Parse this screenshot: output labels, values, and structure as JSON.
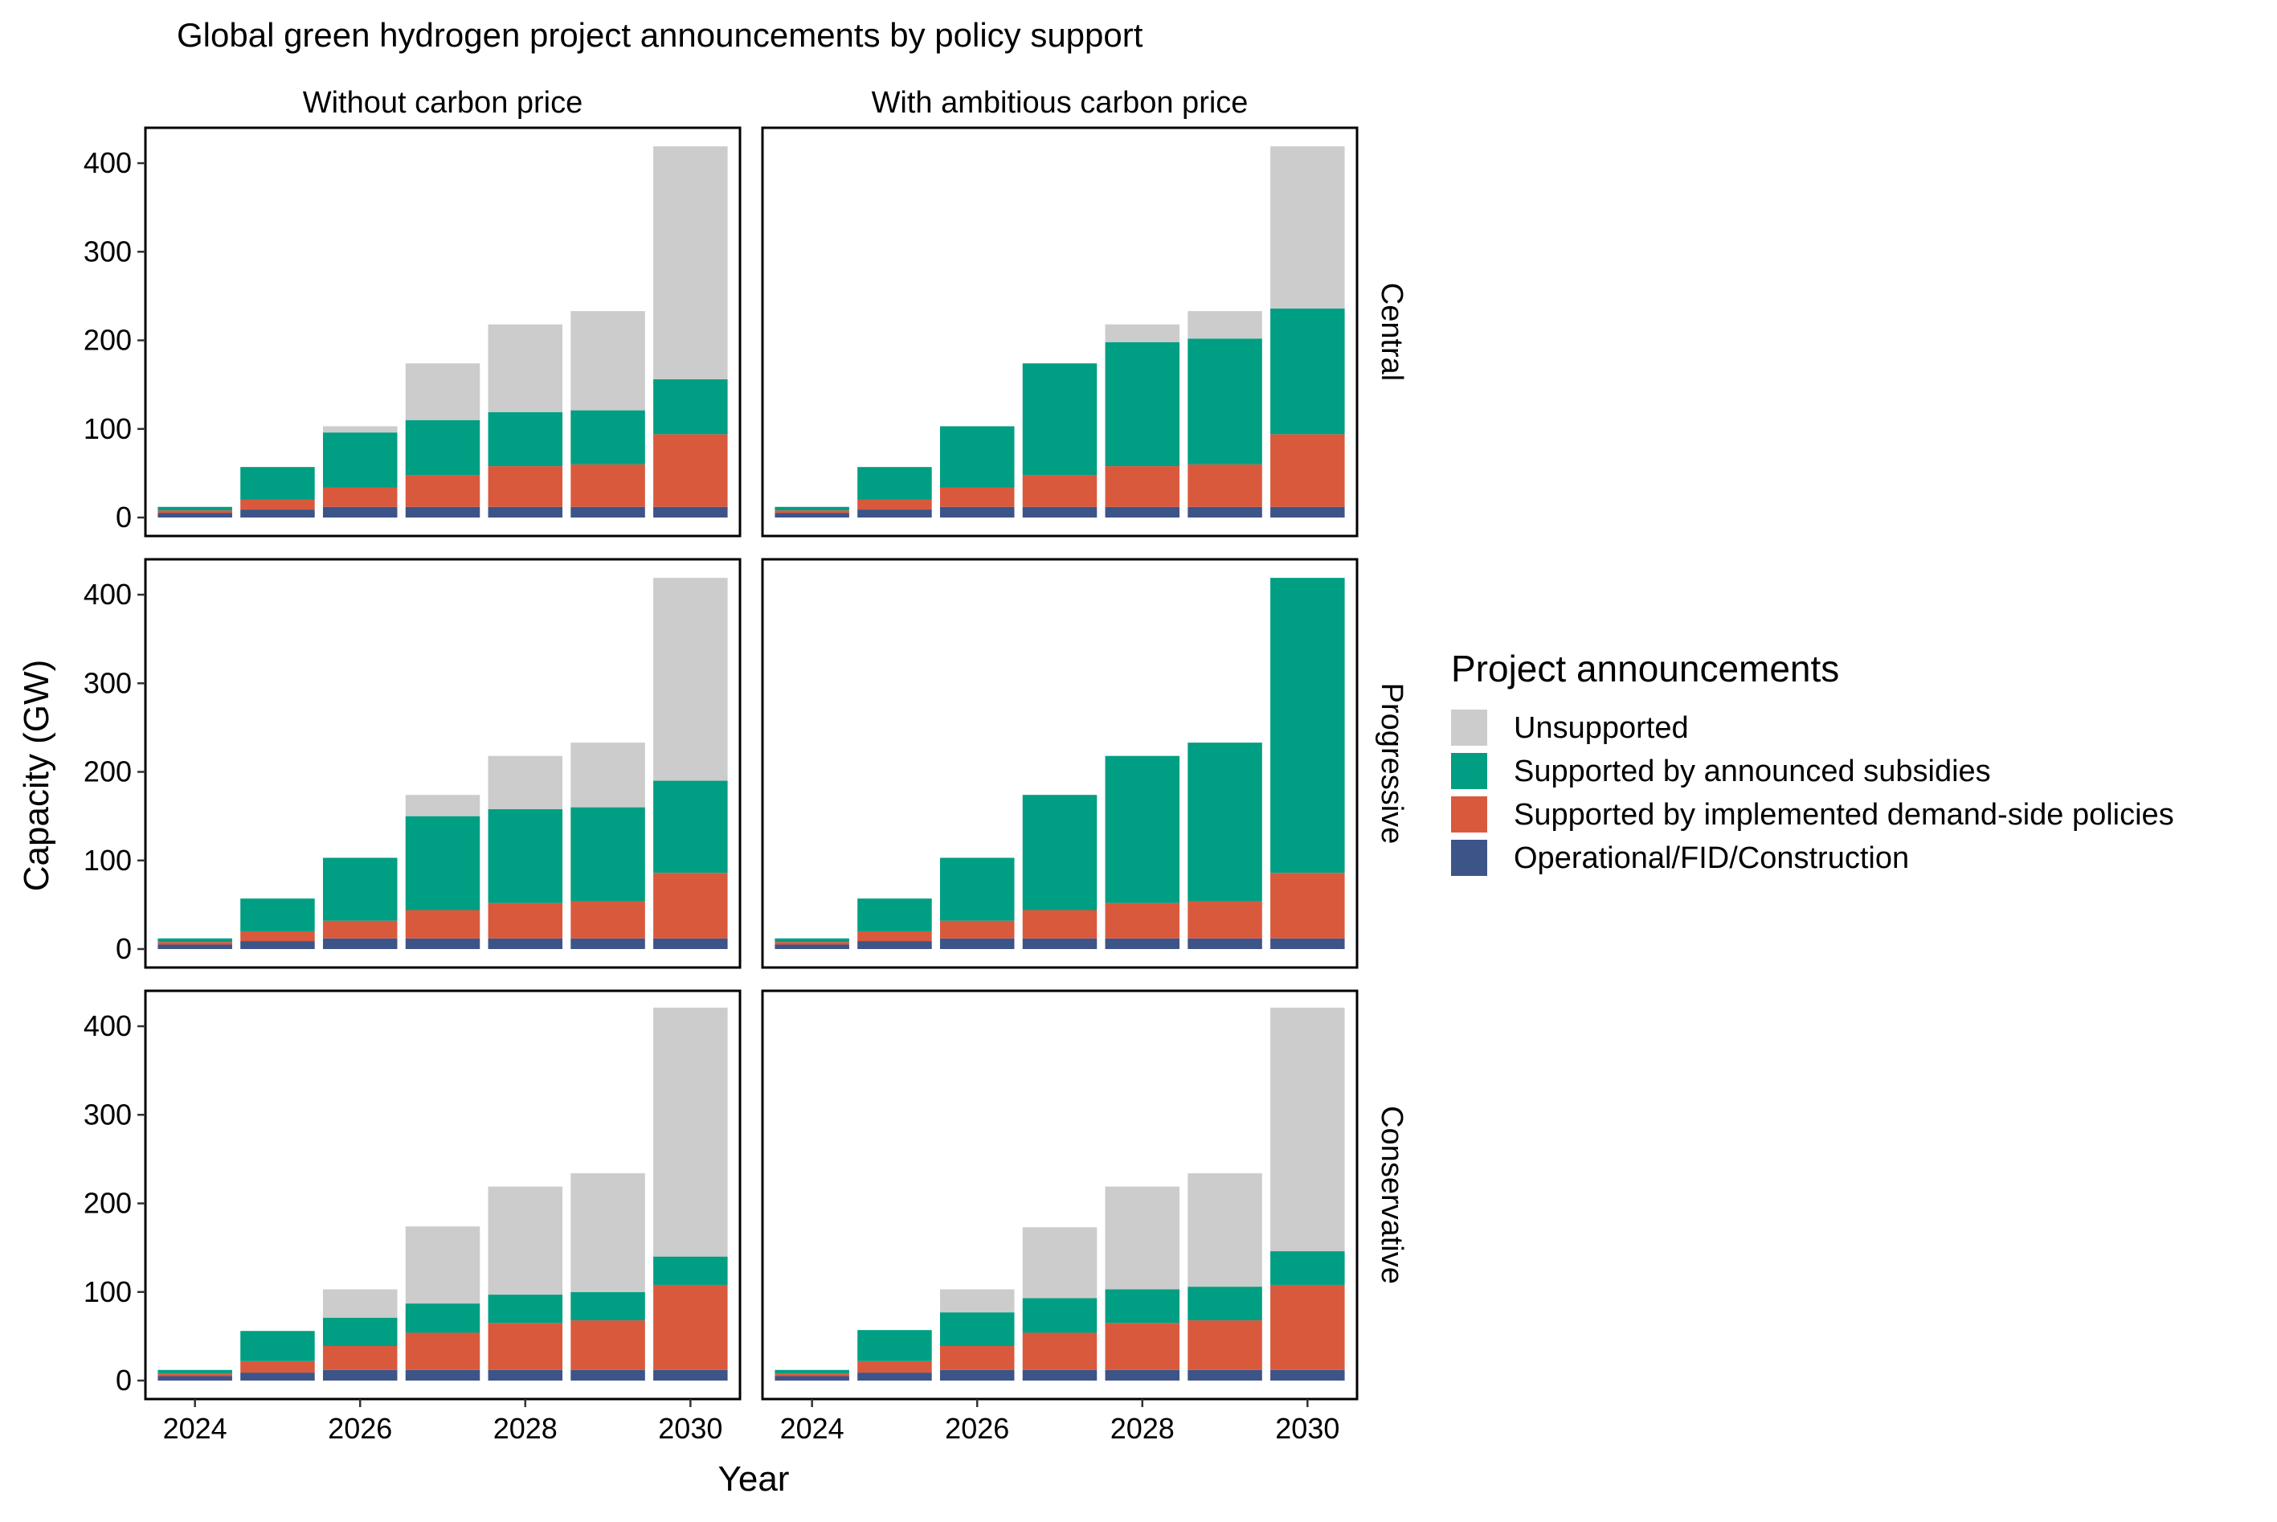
{
  "chart_data": {
    "type": "bar",
    "stacked": true,
    "faceted": true,
    "title": "Global green hydrogen project announcements by policy support",
    "xlabel": "Year",
    "ylabel": "Capacity (GW)",
    "x": [
      2024,
      2025,
      2026,
      2027,
      2028,
      2029,
      2030
    ],
    "x_tick_labels": [
      "2024",
      "2026",
      "2028",
      "2030"
    ],
    "ylim": [
      0,
      420
    ],
    "y_ticks": [
      0,
      100,
      200,
      300,
      400
    ],
    "grid": false,
    "legend_position": "right",
    "column_labels": [
      "Without carbon price",
      "With ambitious carbon price"
    ],
    "row_labels": [
      "Central",
      "Progressive",
      "Conservative"
    ],
    "legend": {
      "title": "Project announcements",
      "items": [
        {
          "key": "unsupported",
          "label": "Unsupported",
          "color": "#cccccc"
        },
        {
          "key": "subsidies",
          "label": "Supported by announced subsidies",
          "color": "#009e82"
        },
        {
          "key": "demand",
          "label": "Supported by implemented demand-side policies",
          "color": "#d9593d"
        },
        {
          "key": "operational",
          "label": "Operational/FID/Construction",
          "color": "#3c5488"
        }
      ]
    },
    "stack_order": [
      "operational",
      "demand",
      "subsidies",
      "unsupported"
    ],
    "panels": [
      {
        "row": "Central",
        "col": "Without carbon price",
        "series": {
          "operational": [
            5,
            9,
            12,
            12,
            12,
            12,
            12
          ],
          "demand": [
            3,
            11,
            22,
            36,
            46,
            48,
            82
          ],
          "subsidies": [
            4,
            37,
            62,
            62,
            61,
            61,
            62
          ],
          "unsupported": [
            0,
            0,
            7,
            64,
            99,
            112,
            263
          ]
        }
      },
      {
        "row": "Central",
        "col": "With ambitious carbon price",
        "series": {
          "operational": [
            5,
            9,
            12,
            12,
            12,
            12,
            12
          ],
          "demand": [
            3,
            11,
            22,
            36,
            46,
            48,
            82
          ],
          "subsidies": [
            4,
            37,
            69,
            126,
            140,
            142,
            142
          ],
          "unsupported": [
            0,
            0,
            0,
            0,
            20,
            31,
            183
          ]
        }
      },
      {
        "row": "Progressive",
        "col": "Without carbon price",
        "series": {
          "operational": [
            5,
            9,
            12,
            12,
            12,
            12,
            12
          ],
          "demand": [
            3,
            11,
            20,
            32,
            40,
            42,
            74
          ],
          "subsidies": [
            4,
            37,
            71,
            106,
            106,
            106,
            104
          ],
          "unsupported": [
            0,
            0,
            0,
            24,
            60,
            73,
            229
          ]
        }
      },
      {
        "row": "Progressive",
        "col": "With ambitious carbon price",
        "series": {
          "operational": [
            5,
            9,
            12,
            12,
            12,
            12,
            12
          ],
          "demand": [
            3,
            11,
            20,
            32,
            40,
            42,
            74
          ],
          "subsidies": [
            4,
            37,
            71,
            130,
            166,
            179,
            333
          ],
          "unsupported": [
            0,
            0,
            0,
            0,
            0,
            0,
            0
          ]
        }
      },
      {
        "row": "Conservative",
        "col": "Without carbon price",
        "series": {
          "operational": [
            5,
            9,
            12,
            12,
            12,
            12,
            12
          ],
          "demand": [
            3,
            13,
            27,
            42,
            53,
            56,
            96
          ],
          "subsidies": [
            4,
            34,
            32,
            33,
            32,
            32,
            32
          ],
          "unsupported": [
            0,
            0,
            32,
            87,
            122,
            134,
            281
          ]
        }
      },
      {
        "row": "Conservative",
        "col": "With ambitious carbon price",
        "series": {
          "operational": [
            5,
            9,
            12,
            12,
            12,
            12,
            12
          ],
          "demand": [
            3,
            13,
            27,
            42,
            53,
            56,
            96
          ],
          "subsidies": [
            4,
            35,
            38,
            39,
            38,
            38,
            38
          ],
          "unsupported": [
            0,
            0,
            26,
            80,
            116,
            128,
            275
          ]
        }
      }
    ]
  }
}
